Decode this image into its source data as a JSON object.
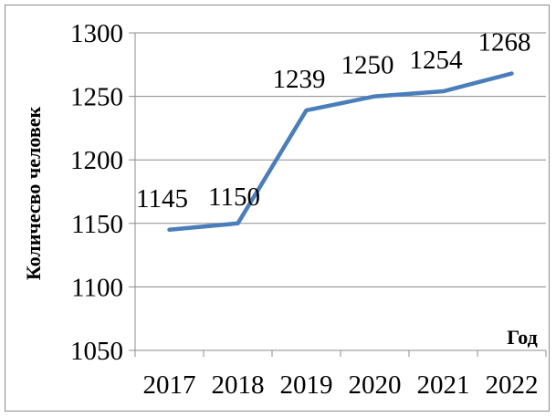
{
  "chart_data": {
    "type": "line",
    "title": "",
    "xlabel": "Год",
    "ylabel": "Количесво человек",
    "categories": [
      "2017",
      "2018",
      "2019",
      "2020",
      "2021",
      "2022"
    ],
    "series": [
      {
        "values": [
          1145,
          1150,
          1239,
          1250,
          1254,
          1268
        ]
      }
    ],
    "data_labels": [
      "1145",
      "1150",
      "1239",
      "1250",
      "1254",
      "1268"
    ],
    "y_ticks": [
      1050,
      1100,
      1150,
      1200,
      1250,
      1300
    ],
    "ylim": [
      1050,
      1300
    ],
    "grid": "horizontal",
    "legend": "none",
    "colors": {
      "line": "#4a7ebb",
      "grid": "#8c8c8c",
      "axis": "#8c8c8c"
    }
  }
}
